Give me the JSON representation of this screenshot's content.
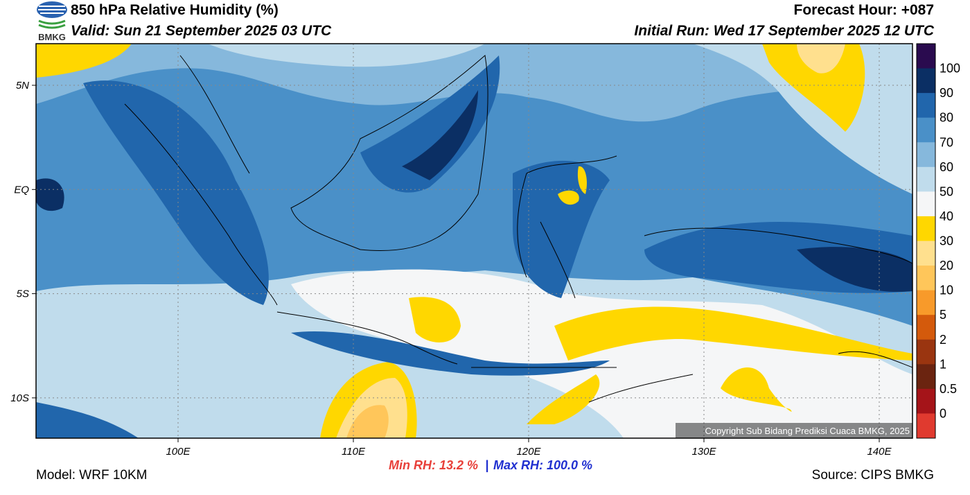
{
  "header": {
    "title": "850 hPa Relative Humidity (%)",
    "valid": "Valid: Sun 21 September 2025 03 UTC",
    "forecast_hour": "Forecast Hour: +087",
    "initial_run": "Initial Run: Wed 17 September 2025 12 UTC",
    "logo_text": "BMKG"
  },
  "map": {
    "lat_labels": [
      "5N",
      "EQ",
      "5S",
      "10S"
    ],
    "lon_labels": [
      "100E",
      "110E",
      "120E",
      "130E",
      "140E"
    ],
    "copyright": "Copyright Sub Bidang Prediksi Cuaca BMKG, 2025"
  },
  "colorbar": {
    "colors": [
      "#2a0b4f",
      "#0b2f64",
      "#2166ac",
      "#4a90c8",
      "#86b8dc",
      "#c0dcec",
      "#f5f6f7",
      "#ffd700",
      "#ffe08e",
      "#ffc65a",
      "#f89a2a",
      "#d45a0c",
      "#9a3510",
      "#6b2410",
      "#a51419",
      "#e03a2f"
    ],
    "labels": [
      "100",
      "90",
      "80",
      "70",
      "60",
      "50",
      "40",
      "30",
      "20",
      "10",
      "5",
      "2",
      "1",
      "0.5",
      "0"
    ]
  },
  "footer": {
    "model": "Model: WRF 10KM",
    "min_rh": "Min RH:  13.2 %",
    "separator": "|",
    "max_rh": "Max RH: 100.0 %",
    "source": "Source: CIPS BMKG"
  }
}
